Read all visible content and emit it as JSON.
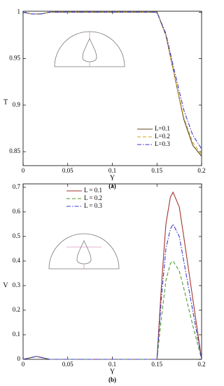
{
  "chart_data": [
    {
      "type": "line",
      "panel_label": "(a)",
      "x_label": "Y",
      "y_label": "T",
      "xlim": [
        0,
        0.2
      ],
      "xticks": [
        0,
        0.05,
        0.1,
        0.15,
        0.2
      ],
      "ylim": [
        0.835,
        1.001
      ],
      "yticks": [
        0.85,
        0.9,
        0.95,
        1
      ],
      "legend": "lower right",
      "x": [
        0,
        0.01,
        0.02,
        0.03,
        0.05,
        0.1,
        0.15,
        0.16,
        0.17,
        0.18,
        0.19,
        0.2
      ],
      "series": [
        {
          "name": "L=0.1",
          "color": "#5b4a1c",
          "dash": "solid",
          "values": [
            1,
            0.998,
            0.998,
            1,
            1,
            1,
            1,
            0.975,
            0.93,
            0.885,
            0.857,
            0.845
          ]
        },
        {
          "name": "L=0.2",
          "color": "#d9a21b",
          "dash": "dashed",
          "values": [
            1,
            0.998,
            0.998,
            1,
            1,
            1,
            1,
            0.975,
            0.93,
            0.887,
            0.86,
            0.847
          ]
        },
        {
          "name": "L=0.3",
          "color": "#3a3acc",
          "dash": "dashdot",
          "values": [
            1,
            0.998,
            0.998,
            1,
            1,
            1,
            1,
            0.977,
            0.935,
            0.895,
            0.868,
            0.853
          ]
        }
      ]
    },
    {
      "type": "line",
      "panel_label": "(b)",
      "x_label": "Y",
      "y_label": "V",
      "xlim": [
        0,
        0.2
      ],
      "xticks": [
        0,
        0.05,
        0.1,
        0.15,
        0.2
      ],
      "ylim": [
        0,
        0.714
      ],
      "yticks": [
        0,
        0.1,
        0.2,
        0.3,
        0.4,
        0.5,
        0.6,
        0.7
      ],
      "legend": "upper center",
      "x": [
        0,
        0.01,
        0.015,
        0.02,
        0.03,
        0.1,
        0.15,
        0.155,
        0.16,
        0.165,
        0.168,
        0.175,
        0.18,
        0.19,
        0.2
      ],
      "series": [
        {
          "name": "L = 0.1",
          "color": "#a3342c",
          "dash": "solid",
          "values": [
            0,
            0.008,
            0.012,
            0.008,
            0,
            0,
            0,
            0.3,
            0.55,
            0.66,
            0.68,
            0.62,
            0.5,
            0.25,
            0
          ]
        },
        {
          "name": "L = 0.2",
          "color": "#4d9a2a",
          "dash": "dashed",
          "values": [
            0,
            0.008,
            0.012,
            0.008,
            0,
            0,
            0,
            0.17,
            0.32,
            0.39,
            0.4,
            0.36,
            0.29,
            0.14,
            0
          ]
        },
        {
          "name": "L = 0.3",
          "color": "#3a3acc",
          "dash": "dashdot",
          "values": [
            0,
            0.008,
            0.012,
            0.008,
            0,
            0,
            0,
            0.25,
            0.45,
            0.53,
            0.55,
            0.5,
            0.4,
            0.2,
            0
          ]
        }
      ]
    }
  ]
}
